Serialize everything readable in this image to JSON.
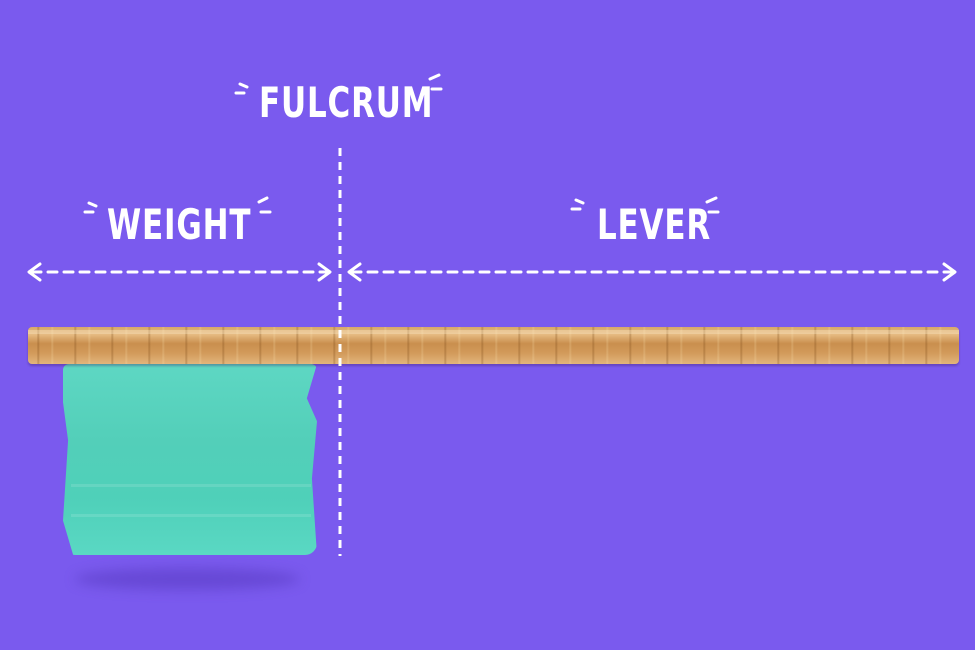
{
  "labels": {
    "fulcrum": "FULCRUM",
    "weight": "WEIGHT",
    "lever": "LEVER"
  },
  "colors": {
    "background": "#7a5aee",
    "text": "#ffffff",
    "board": "#d7a86a",
    "weight": "#53cfb9"
  }
}
